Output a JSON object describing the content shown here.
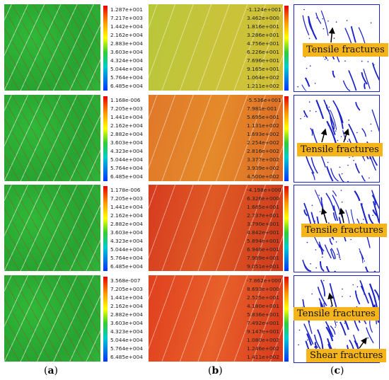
{
  "panel_labels": {
    "a": "a",
    "b": "b",
    "c": "c"
  },
  "rows": [
    {
      "colorbar_a": [
        "1.287e+001",
        "7.217e+003",
        "1.442e+004",
        "2.162e+004",
        "2.883e+004",
        "3.603e+004",
        "4.324e+004",
        "5.044e+004",
        "5.764e+004",
        "6.485e+004"
      ],
      "colorbar_b": [
        "-1.124e+001",
        "3.462e+000",
        "1.816e+001",
        "3.286e+001",
        "4.756e+001",
        "6.226e+001",
        "7.696e+001",
        "9.165e+001",
        "1.064e+002",
        "1.211e+002"
      ],
      "tags": [
        "Tensile fractures"
      ]
    },
    {
      "colorbar_a": [
        "1.168e-006",
        "7.205e+003",
        "1.441e+004",
        "2.162e+004",
        "2.882e+004",
        "3.603e+004",
        "4.323e+004",
        "5.044e+004",
        "5.764e+004",
        "6.485e+004"
      ],
      "colorbar_b": [
        "-5.536e+001",
        "7.981e-001",
        "5.695e+001",
        "1.131e+002",
        "1.693e+002",
        "2.254e+002",
        "2.816e+002",
        "3.377e+002",
        "3.939e+002",
        "4.500e+002"
      ],
      "tags": [
        "Tensile fractures"
      ]
    },
    {
      "colorbar_a": [
        "1.178e-006",
        "7.205e+003",
        "1.441e+004",
        "2.162e+004",
        "2.882e+004",
        "3.603e+004",
        "4.323e+004",
        "5.044e+004",
        "5.764e+004",
        "6.485e+004"
      ],
      "colorbar_b": [
        "-4.198e+000",
        "6.326e+000",
        "1.685e+001",
        "2.737e+001",
        "3.790e+001",
        "4.842e+001",
        "5.894e+001",
        "6.946e+001",
        "7.999e+001",
        "9.051e+001"
      ],
      "tags": [
        "Tensile fractures"
      ]
    },
    {
      "colorbar_a": [
        "3.568e-007",
        "7.205e+003",
        "1.441e+004",
        "2.162e+004",
        "2.882e+004",
        "3.603e+004",
        "4.323e+004",
        "5.044e+004",
        "5.764e+004",
        "6.485e+004"
      ],
      "colorbar_b": [
        "-7.862e+000",
        "8.693e+000",
        "2.525e+001",
        "4.180e+001",
        "5.836e+001",
        "7.492e+001",
        "9.147e+001",
        "1.080e+002",
        "1.246e+002",
        "1.411e+002"
      ],
      "tags": [
        "Tensile fractures",
        "Shear fractures"
      ]
    }
  ],
  "colors": {
    "tag_bg": "#f4b41a",
    "fracture_line": "#1b22c9"
  }
}
